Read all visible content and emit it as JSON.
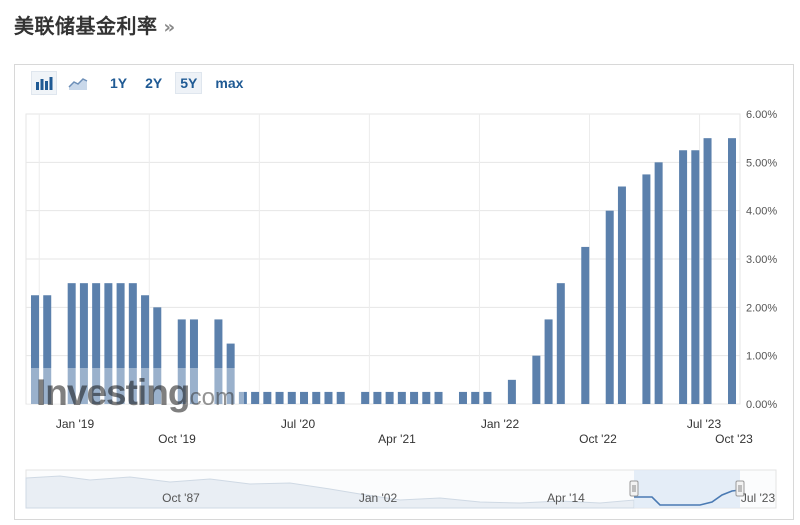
{
  "page": {
    "title": "美联储基金利率",
    "title_suffix": "»"
  },
  "toolbar": {
    "icons": [
      "bar-chart-icon",
      "line-chart-icon"
    ],
    "ranges": [
      "1Y",
      "2Y",
      "5Y",
      "max"
    ],
    "active_range": "5Y"
  },
  "watermark": {
    "text": "Investing",
    "suffix": ".com"
  },
  "colors": {
    "bar": "#5b80ac",
    "navigator_line": "#4a7ab3",
    "link": "#1f5a94",
    "grid": "#e6e6e6"
  },
  "chart_data": {
    "type": "bar",
    "x": [
      "2018-12",
      "2019-01",
      "2019-03",
      "2019-04",
      "2019-05",
      "2019-06",
      "2019-07",
      "2019-08",
      "2019-09",
      "2019-10",
      "2019-12",
      "2020-01",
      "2020-03",
      "2020-04",
      "2020-05",
      "2020-06",
      "2020-07",
      "2020-08",
      "2020-09",
      "2020-10",
      "2020-11",
      "2020-12",
      "2021-01",
      "2021-03",
      "2021-04",
      "2021-05",
      "2021-06",
      "2021-07",
      "2021-08",
      "2021-09",
      "2021-11",
      "2021-12",
      "2022-01",
      "2022-03",
      "2022-05",
      "2022-06",
      "2022-07",
      "2022-09",
      "2022-11",
      "2022-12",
      "2023-02",
      "2023-03",
      "2023-05",
      "2023-06",
      "2023-07",
      "2023-09"
    ],
    "values": [
      2.25,
      2.25,
      2.5,
      2.5,
      2.5,
      2.5,
      2.5,
      2.5,
      2.25,
      2.0,
      1.75,
      1.75,
      1.75,
      1.25,
      0.25,
      0.25,
      0.25,
      0.25,
      0.25,
      0.25,
      0.25,
      0.25,
      0.25,
      0.25,
      0.25,
      0.25,
      0.25,
      0.25,
      0.25,
      0.25,
      0.25,
      0.25,
      0.25,
      0.5,
      1.0,
      1.75,
      2.5,
      3.25,
      4.0,
      4.5,
      4.75,
      5.0,
      5.25,
      5.25,
      5.5,
      5.5
    ],
    "x_ticks_row1": [
      "Jan '19",
      "Jul '20",
      "Jan '22",
      "Jul '23"
    ],
    "x_ticks_row2": [
      "Oct '19",
      "Apr '21",
      "Oct '22",
      "Oct '23"
    ],
    "y_ticks": [
      "0.00%",
      "1.00%",
      "2.00%",
      "3.00%",
      "4.00%",
      "5.00%",
      "6.00%"
    ],
    "ylim": [
      0,
      6
    ],
    "grid": true,
    "navigator": {
      "labels": [
        "Oct '87",
        "Jan '02",
        "Apr '14",
        "Jul '23"
      ]
    }
  }
}
